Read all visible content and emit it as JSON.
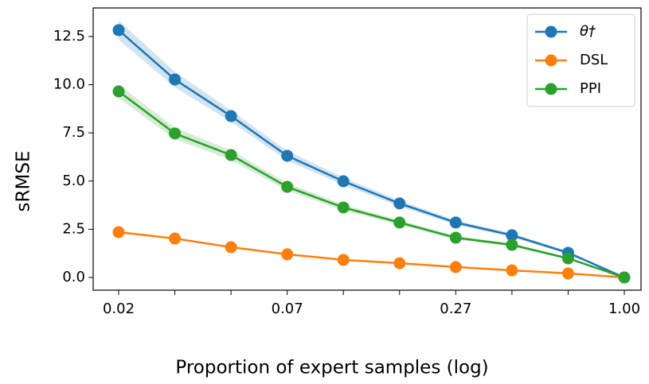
{
  "chart_data": {
    "type": "line",
    "x_label": "Proportion of expert samples (log)",
    "y_label": "sRMSE",
    "categories": [
      "0.02",
      null,
      null,
      "0.07",
      null,
      null,
      "0.27",
      null,
      null,
      "1.00"
    ],
    "ylim": [
      -0.66,
      13.98
    ],
    "yticks": [
      {
        "value": 0,
        "label": "0.0"
      },
      2.5,
      {
        "value": 5,
        "label": "5.0"
      },
      7.5,
      {
        "value": 10,
        "label": "10.0"
      },
      12.5
    ],
    "legend": "upper right",
    "series": [
      {
        "name": "θ†",
        "color": "#1f77b4",
        "values": [
          12.83,
          10.27,
          8.37,
          6.31,
          4.99,
          3.84,
          2.85,
          2.19,
          1.28,
          0
        ],
        "errors": [
          0.5,
          0.4,
          0.3,
          0.25,
          0.2,
          0.15,
          0.12,
          0.1,
          0.08,
          0
        ]
      },
      {
        "name": "DSL",
        "color": "#ff7f0e",
        "values": [
          2.35,
          2.02,
          1.57,
          1.2,
          0.91,
          0.74,
          0.54,
          0.37,
          0.21,
          0
        ]
      },
      {
        "name": "PPI",
        "color": "#2ca02c",
        "values": [
          9.65,
          7.47,
          6.35,
          4.7,
          3.63,
          2.85,
          2.06,
          1.69,
          0.99,
          0
        ],
        "errors": [
          0.35,
          0.3,
          0.25,
          0.2,
          0.15,
          0.12,
          0.1,
          0.08,
          0.06,
          0
        ]
      }
    ]
  }
}
